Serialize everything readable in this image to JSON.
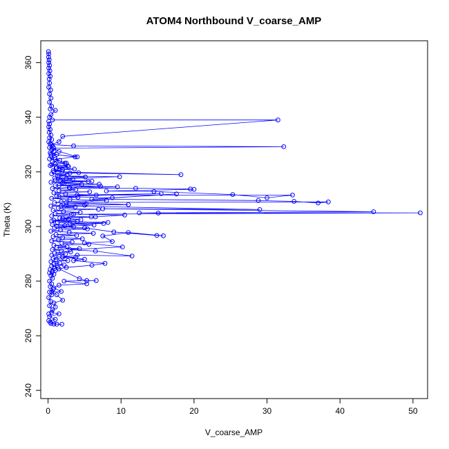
{
  "chart_data": {
    "type": "line",
    "title": "ATOM4 Northbound V_coarse_AMP",
    "xlabel": "V_coarse_AMP",
    "ylabel": "Theta (K)",
    "xlim": [
      -1,
      52
    ],
    "ylim": [
      237,
      368
    ],
    "x_ticks": [
      0,
      10,
      20,
      30,
      40,
      50
    ],
    "y_ticks": [
      240,
      260,
      280,
      300,
      320,
      340,
      360
    ],
    "grid": false,
    "legend": "none",
    "color": "#0000ff",
    "marker": "open-circle",
    "series": [
      {
        "points": [
          [
            0.05,
            364
          ],
          [
            0.1,
            363.2
          ],
          [
            0.08,
            362
          ],
          [
            0.15,
            361
          ],
          [
            0.1,
            360
          ],
          [
            0.2,
            359
          ],
          [
            0.1,
            358
          ],
          [
            0.25,
            357
          ],
          [
            0.1,
            356
          ],
          [
            0.3,
            355
          ],
          [
            0.15,
            354
          ],
          [
            0.2,
            352.5
          ],
          [
            0.1,
            351
          ],
          [
            0.35,
            350
          ],
          [
            0.2,
            348.5
          ],
          [
            0.4,
            347
          ],
          [
            0.2,
            345.5
          ],
          [
            0.5,
            344
          ],
          [
            0.3,
            343
          ],
          [
            1.0,
            342.5
          ],
          [
            0.4,
            341
          ],
          [
            0.2,
            340
          ],
          [
            0.6,
            339
          ],
          [
            31.5,
            339
          ],
          [
            2.0,
            333
          ],
          [
            1.5,
            331
          ],
          [
            0.5,
            330
          ],
          [
            3.5,
            329.5
          ],
          [
            32.3,
            329.2
          ],
          [
            0.8,
            328.7
          ],
          [
            1.5,
            327.5
          ],
          [
            4.0,
            325.5
          ],
          [
            0.4,
            326.5
          ],
          [
            3.7,
            325.5
          ],
          [
            1.0,
            324.6
          ],
          [
            2.5,
            323.2
          ],
          [
            0.5,
            322.6
          ],
          [
            2.7,
            322.2
          ],
          [
            1.2,
            321.5
          ],
          [
            2.0,
            320.8
          ],
          [
            0.8,
            320.0
          ],
          [
            18.2,
            319.0
          ],
          [
            3.0,
            319.6
          ],
          [
            1.5,
            318.5
          ],
          [
            9.8,
            318.2
          ],
          [
            2.5,
            317.5
          ],
          [
            1.0,
            317.0
          ],
          [
            5.5,
            316.5
          ],
          [
            2.0,
            316.0
          ],
          [
            7.0,
            315.5
          ],
          [
            1.5,
            315.0
          ],
          [
            9.5,
            314.5
          ],
          [
            3.0,
            314.0
          ],
          [
            12.0,
            314.0
          ],
          [
            19.5,
            313.7
          ],
          [
            20.0,
            313.6
          ],
          [
            8.0,
            313.0
          ],
          [
            14.5,
            312.8
          ],
          [
            25.3,
            311.7
          ],
          [
            30.0,
            310.5
          ],
          [
            33.5,
            311.5
          ],
          [
            4.0,
            311.5
          ],
          [
            15.5,
            312.0
          ],
          [
            1.5,
            311.0
          ],
          [
            8.8,
            310.5
          ],
          [
            17.6,
            311.9
          ],
          [
            6.0,
            310.0
          ],
          [
            28.8,
            309.5
          ],
          [
            33.7,
            309.2
          ],
          [
            37.0,
            308.6
          ],
          [
            38.4,
            309.0
          ],
          [
            2.5,
            308.8
          ],
          [
            11.0,
            308.0
          ],
          [
            5.0,
            307.8
          ],
          [
            1.8,
            307.5
          ],
          [
            29.0,
            306.2
          ],
          [
            7.5,
            306.5
          ],
          [
            44.6,
            305.4
          ],
          [
            12.5,
            305.0
          ],
          [
            15.1,
            304.9
          ],
          [
            51.0,
            305.0
          ],
          [
            3.5,
            304.5
          ],
          [
            10.5,
            304.2
          ],
          [
            6.5,
            303.5
          ],
          [
            2.0,
            303.0
          ],
          [
            4.5,
            302.5
          ],
          [
            0.5,
            302.0
          ],
          [
            8.2,
            301.5
          ],
          [
            3.0,
            301.0
          ],
          [
            6.3,
            300.5
          ],
          [
            1.2,
            300.0
          ],
          [
            5.0,
            299.5
          ],
          [
            9.0,
            298.0
          ],
          [
            14.9,
            296.7
          ],
          [
            15.8,
            296.6
          ],
          [
            11.0,
            297.8
          ],
          [
            7.5,
            296.5
          ],
          [
            8.8,
            294.5
          ],
          [
            5.0,
            294.0
          ],
          [
            10.2,
            292.5
          ],
          [
            3.0,
            291.5
          ],
          [
            6.5,
            291.0
          ],
          [
            11.5,
            289.2
          ],
          [
            4.0,
            289.5
          ],
          [
            2.0,
            288.8
          ],
          [
            5.0,
            288.0
          ],
          [
            3.5,
            287.5
          ],
          [
            7.8,
            286.5
          ],
          [
            6.0,
            285.8
          ],
          [
            2.5,
            285.0
          ],
          [
            1.5,
            284.5
          ],
          [
            4.3,
            280.9
          ],
          [
            5.3,
            280.2
          ],
          [
            6.6,
            280.2
          ],
          [
            2.2,
            280.0
          ],
          [
            5.3,
            279.0
          ],
          [
            1.5,
            278.5
          ],
          [
            0.8,
            277.5
          ],
          [
            1.8,
            276.2
          ],
          [
            0.5,
            276.0
          ],
          [
            1.2,
            275.0
          ],
          [
            2.0,
            273.0
          ],
          [
            0.8,
            272.0
          ],
          [
            1.0,
            270.5
          ],
          [
            0.5,
            268.5
          ],
          [
            1.5,
            268.0
          ],
          [
            0.2,
            267.0
          ],
          [
            1.0,
            266.0
          ],
          [
            0.1,
            265.5
          ],
          [
            0.4,
            264.5
          ],
          [
            0.8,
            264.3
          ],
          [
            1.9,
            264.2
          ],
          [
            1.2,
            264.2
          ],
          [
            0.3,
            265.0
          ]
        ]
      },
      {
        "points": [
          [
            0.1,
            338.5
          ],
          [
            0.2,
            337.5
          ],
          [
            0.1,
            336.5
          ],
          [
            0.3,
            335.5
          ],
          [
            0.15,
            334.5
          ],
          [
            0.4,
            333.5
          ],
          [
            0.2,
            332.5
          ],
          [
            0.5,
            331.8
          ],
          [
            0.1,
            331.0
          ],
          [
            0.3,
            330.2
          ],
          [
            0.6,
            329.5
          ],
          [
            0.2,
            328.9
          ],
          [
            0.5,
            328.2
          ],
          [
            0.8,
            327.6
          ],
          [
            0.3,
            327.0
          ],
          [
            1.2,
            326.4
          ],
          [
            0.4,
            325.8
          ],
          [
            0.9,
            325.2
          ],
          [
            0.2,
            324.7
          ],
          [
            1.6,
            324.2
          ],
          [
            0.6,
            323.7
          ],
          [
            2.3,
            323.2
          ],
          [
            1.0,
            322.8
          ],
          [
            0.3,
            322.3
          ],
          [
            2.8,
            321.8
          ],
          [
            1.1,
            321.4
          ],
          [
            3.6,
            321.0
          ],
          [
            0.7,
            320.5
          ],
          [
            1.9,
            320.1
          ],
          [
            4.2,
            319.7
          ],
          [
            0.5,
            319.3
          ],
          [
            2.6,
            318.9
          ],
          [
            1.3,
            318.5
          ],
          [
            5.1,
            318.1
          ],
          [
            0.9,
            317.7
          ],
          [
            3.4,
            317.3
          ],
          [
            1.7,
            316.9
          ],
          [
            6.0,
            316.6
          ],
          [
            0.4,
            316.2
          ],
          [
            2.2,
            315.8
          ],
          [
            4.6,
            315.4
          ],
          [
            1.0,
            315.0
          ],
          [
            7.2,
            314.7
          ],
          [
            2.9,
            314.3
          ],
          [
            0.6,
            313.9
          ],
          [
            3.8,
            313.5
          ],
          [
            1.5,
            313.1
          ],
          [
            5.7,
            312.7
          ],
          [
            0.8,
            312.3
          ],
          [
            2.4,
            311.9
          ],
          [
            6.6,
            311.5
          ],
          [
            1.2,
            311.1
          ],
          [
            4.1,
            310.7
          ],
          [
            0.5,
            310.3
          ],
          [
            3.0,
            309.9
          ],
          [
            8.0,
            309.5
          ],
          [
            1.8,
            309.1
          ],
          [
            0.9,
            308.7
          ],
          [
            5.2,
            308.3
          ],
          [
            2.5,
            307.9
          ],
          [
            0.4,
            307.5
          ],
          [
            3.7,
            307.1
          ],
          [
            1.4,
            306.7
          ],
          [
            6.9,
            306.3
          ],
          [
            0.7,
            305.9
          ],
          [
            2.1,
            305.5
          ],
          [
            4.4,
            305.1
          ],
          [
            1.0,
            304.7
          ],
          [
            3.2,
            304.3
          ],
          [
            0.5,
            303.9
          ],
          [
            5.9,
            303.5
          ],
          [
            1.6,
            303.1
          ],
          [
            2.8,
            302.7
          ],
          [
            0.8,
            302.3
          ],
          [
            4.0,
            301.9
          ],
          [
            1.3,
            301.5
          ],
          [
            7.6,
            301.1
          ],
          [
            0.6,
            300.7
          ],
          [
            2.3,
            300.3
          ],
          [
            3.5,
            299.9
          ],
          [
            0.9,
            299.5
          ],
          [
            5.4,
            299.1
          ],
          [
            1.7,
            298.7
          ],
          [
            0.4,
            298.3
          ],
          [
            2.9,
            297.9
          ],
          [
            6.2,
            297.5
          ],
          [
            1.1,
            297.1
          ],
          [
            3.9,
            296.7
          ],
          [
            0.7,
            296.3
          ],
          [
            2.0,
            295.9
          ],
          [
            4.7,
            295.5
          ],
          [
            1.4,
            295.1
          ],
          [
            0.5,
            294.7
          ],
          [
            3.3,
            294.3
          ],
          [
            1.9,
            293.9
          ],
          [
            5.6,
            293.5
          ],
          [
            0.8,
            293.1
          ],
          [
            2.6,
            292.7
          ],
          [
            1.2,
            292.3
          ],
          [
            4.3,
            291.9
          ],
          [
            0.6,
            291.5
          ],
          [
            1.8,
            291.1
          ],
          [
            3.1,
            290.7
          ],
          [
            0.9,
            290.3
          ],
          [
            2.4,
            289.9
          ],
          [
            0.5,
            289.5
          ],
          [
            1.5,
            289.1
          ],
          [
            3.8,
            288.7
          ],
          [
            0.7,
            288.3
          ],
          [
            1.1,
            287.9
          ],
          [
            2.7,
            287.5
          ],
          [
            0.4,
            287.1
          ],
          [
            1.6,
            286.7
          ],
          [
            0.8,
            286.3
          ],
          [
            2.2,
            285.9
          ],
          [
            0.5,
            285.5
          ],
          [
            1.3,
            285.1
          ],
          [
            0.9,
            284.7
          ],
          [
            0.3,
            284.3
          ],
          [
            1.0,
            283.9
          ],
          [
            0.6,
            283.5
          ],
          [
            0.2,
            283.0
          ],
          [
            0.8,
            282.5
          ],
          [
            0.4,
            282.0
          ],
          [
            0.6,
            281.0
          ],
          [
            0.2,
            280.0
          ],
          [
            0.5,
            279.0
          ],
          [
            0.3,
            278.0
          ],
          [
            0.7,
            277.0
          ],
          [
            0.2,
            276.0
          ],
          [
            0.5,
            275.0
          ],
          [
            0.1,
            274.0
          ],
          [
            0.4,
            272.5
          ],
          [
            0.2,
            271.0
          ],
          [
            0.6,
            269.5
          ],
          [
            0.1,
            268.0
          ]
        ]
      }
    ]
  }
}
